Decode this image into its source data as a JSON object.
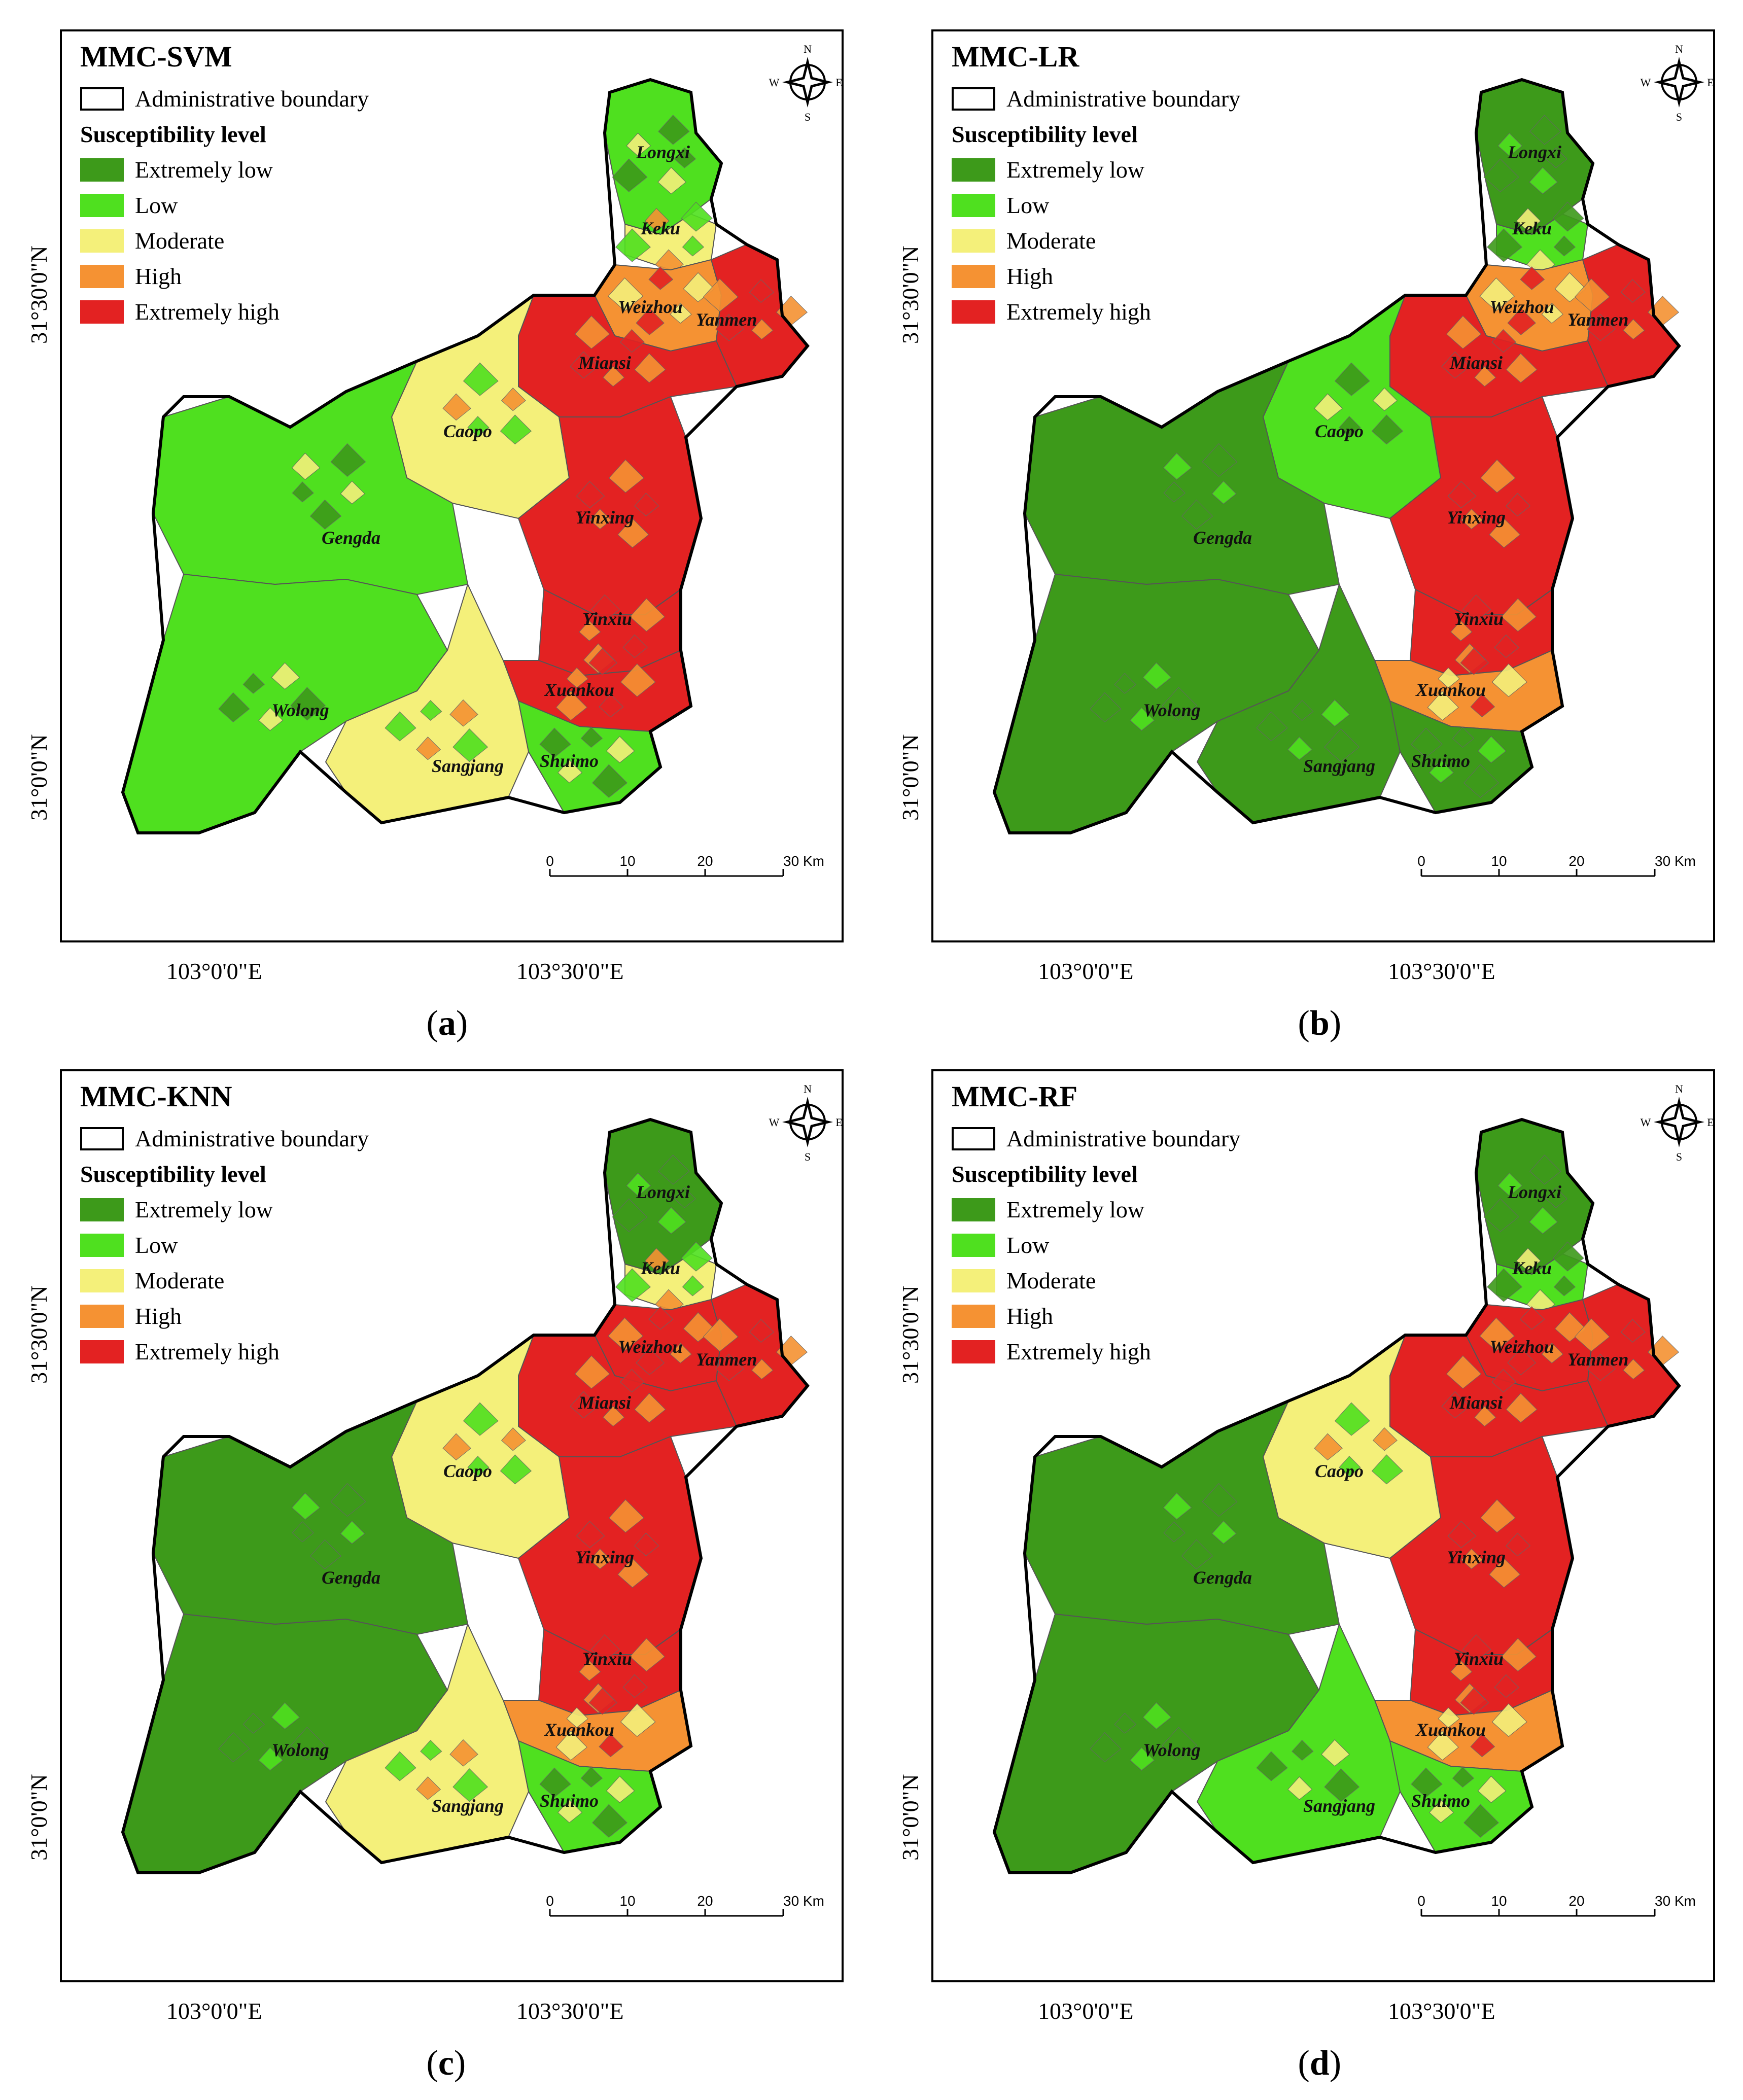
{
  "panels": [
    {
      "id": "a",
      "title": "MMC-SVM",
      "caption": "a",
      "regions": {
        "Longxi": "low",
        "Keku": "mod",
        "Weizhou": "high",
        "Yanmen": "xhigh",
        "Miansi": "xhigh",
        "Caopo": "mod",
        "Yinxing": "xhigh",
        "Gengda": "low",
        "Yinxiu": "xhigh",
        "Xuankou": "xhigh",
        "Wolong": "low",
        "Sangjang": "mod",
        "Shuimo": "low"
      }
    },
    {
      "id": "b",
      "title": "MMC-LR",
      "caption": "b",
      "regions": {
        "Longxi": "xlow",
        "Keku": "low",
        "Weizhou": "high",
        "Yanmen": "xhigh",
        "Miansi": "xhigh",
        "Caopo": "low",
        "Yinxing": "xhigh",
        "Gengda": "xlow",
        "Yinxiu": "xhigh",
        "Xuankou": "high",
        "Wolong": "xlow",
        "Sangjang": "xlow",
        "Shuimo": "xlow"
      }
    },
    {
      "id": "c",
      "title": "MMC-KNN",
      "caption": "c",
      "regions": {
        "Longxi": "xlow",
        "Keku": "mod",
        "Weizhou": "xhigh",
        "Yanmen": "xhigh",
        "Miansi": "xhigh",
        "Caopo": "mod",
        "Yinxing": "xhigh",
        "Gengda": "xlow",
        "Yinxiu": "xhigh",
        "Xuankou": "high",
        "Wolong": "xlow",
        "Sangjang": "mod",
        "Shuimo": "low"
      }
    },
    {
      "id": "d",
      "title": "MMC-RF",
      "caption": "d",
      "regions": {
        "Longxi": "xlow",
        "Keku": "low",
        "Weizhou": "xhigh",
        "Yanmen": "xhigh",
        "Miansi": "xhigh",
        "Caopo": "mod",
        "Yinxing": "xhigh",
        "Gengda": "xlow",
        "Yinxiu": "xhigh",
        "Xuankou": "high",
        "Wolong": "xlow",
        "Sangjang": "low",
        "Shuimo": "low"
      }
    }
  ],
  "legend": {
    "boundary_label": "Administrative boundary",
    "heading": "Susceptibility level",
    "levels": [
      {
        "key": "xlow",
        "label": "Extremely low",
        "color": "#3d9a1a"
      },
      {
        "key": "low",
        "label": "Low",
        "color": "#4fe01f"
      },
      {
        "key": "mod",
        "label": "Moderate",
        "color": "#f4f07a"
      },
      {
        "key": "high",
        "label": "High",
        "color": "#f59233"
      },
      {
        "key": "xhigh",
        "label": "Extremely high",
        "color": "#e32222"
      }
    ]
  },
  "axes": {
    "lat_labels": [
      "31°30'0\"N",
      "31°0'0\"N"
    ],
    "lon_labels": [
      "103°0'0\"E",
      "103°30'0\"E"
    ]
  },
  "scale_bar": {
    "ticks": [
      "0",
      "10",
      "20",
      "30 Km"
    ]
  },
  "compass": {
    "n": "N",
    "s": "S",
    "e": "E",
    "w": "W"
  },
  "region_names": [
    "Longxi",
    "Keku",
    "Weizhou",
    "Yanmen",
    "Miansi",
    "Caopo",
    "Yinxing",
    "Gengda",
    "Yinxiu",
    "Xuankou",
    "Wolong",
    "Sangjang",
    "Shuimo"
  ]
}
